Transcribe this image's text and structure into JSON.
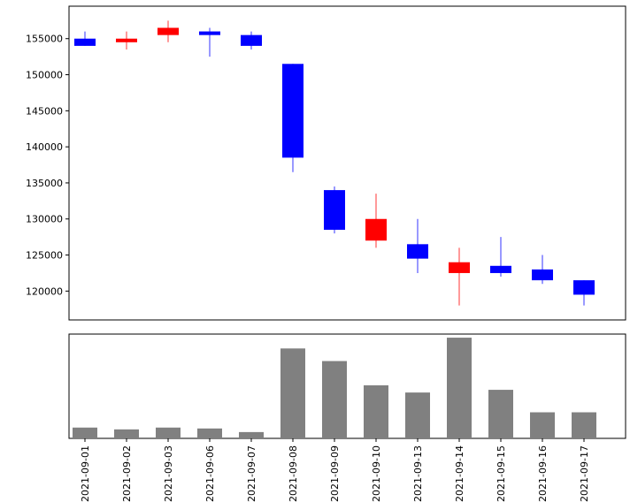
{
  "chart_data": [
    {
      "type": "candlestick",
      "categories": [
        "2021-09-01",
        "2021-09-02",
        "2021-09-03",
        "2021-09-06",
        "2021-09-07",
        "2021-09-08",
        "2021-09-09",
        "2021-09-10",
        "2021-09-13",
        "2021-09-14",
        "2021-09-15",
        "2021-09-16",
        "2021-09-17"
      ],
      "open": [
        155000,
        154500,
        155500,
        156000,
        155500,
        151500,
        134000,
        127000,
        126500,
        122500,
        123500,
        123000,
        121500
      ],
      "close": [
        154000,
        155000,
        156500,
        155500,
        154000,
        138500,
        128500,
        130000,
        124500,
        124000,
        122500,
        121500,
        119500
      ],
      "high": [
        156000,
        156000,
        157500,
        156500,
        156000,
        151500,
        134500,
        133500,
        130000,
        126000,
        127500,
        125000,
        121500
      ],
      "low": [
        154000,
        153500,
        154500,
        152500,
        153500,
        136500,
        128000,
        126000,
        122500,
        118000,
        122000,
        121000,
        118000
      ],
      "ylim": [
        116000,
        159500
      ],
      "yticks": [
        "120000",
        "125000",
        "130000",
        "135000",
        "140000",
        "145000",
        "150000",
        "155000"
      ],
      "colors": {
        "up": "#ff0000",
        "down": "#0000ff"
      }
    },
    {
      "type": "bar",
      "categories": [
        "2021-09-01",
        "2021-09-02",
        "2021-09-03",
        "2021-09-06",
        "2021-09-07",
        "2021-09-08",
        "2021-09-09",
        "2021-09-10",
        "2021-09-13",
        "2021-09-14",
        "2021-09-15",
        "2021-09-16",
        "2021-09-17"
      ],
      "values": [
        12,
        10,
        12,
        11,
        7,
        100,
        86,
        59,
        51,
        112,
        54,
        29,
        29
      ],
      "ylim": [
        0,
        116
      ],
      "color": "#808080"
    }
  ]
}
